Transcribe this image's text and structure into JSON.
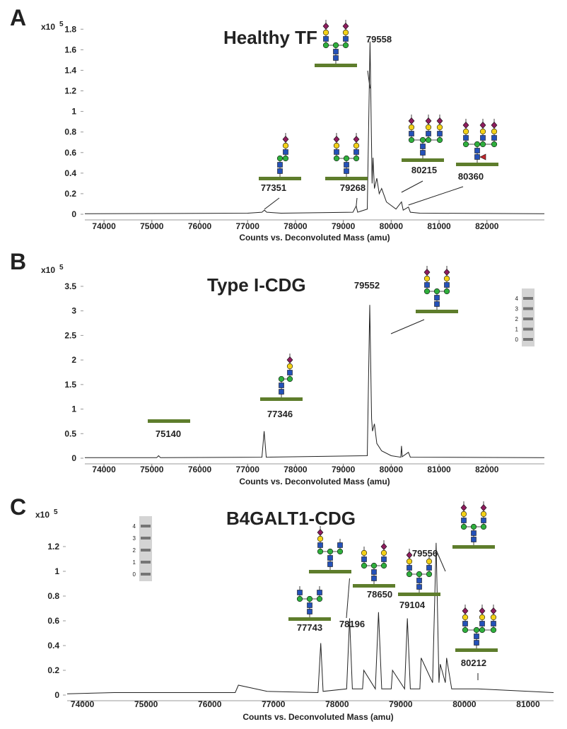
{
  "chart_data": [
    {
      "type": "line",
      "panel": "A",
      "title": "Healthy TF",
      "y_unit": "x10",
      "y_unit_exponent": "5",
      "xlabel": "Counts vs. Deconvoluted Mass (amu)",
      "color": "#222222",
      "x": [
        73600,
        77000,
        77300,
        77351,
        77400,
        77700,
        79200,
        79268,
        79300,
        79500,
        79558,
        79600,
        79620,
        79650,
        79700,
        79750,
        79800,
        79900,
        80100,
        80215,
        80250,
        80360,
        80400,
        80600,
        83200
      ],
      "values": [
        0.005,
        0.01,
        0.02,
        0.04,
        0.02,
        0.01,
        0.02,
        0.08,
        0.02,
        0.05,
        1.68,
        0.3,
        0.55,
        0.25,
        0.35,
        0.2,
        0.25,
        0.12,
        0.05,
        0.12,
        0.04,
        0.07,
        0.02,
        0.01,
        0.005
      ],
      "xlim": [
        73600,
        83200
      ],
      "ylim": [
        0,
        1.85
      ],
      "xticks": [
        74000,
        75000,
        76000,
        77000,
        78000,
        79000,
        80000,
        81000,
        82000
      ],
      "yticks": [
        0,
        0.2,
        0.4,
        0.6,
        0.8,
        1,
        1.2,
        1.4,
        1.6,
        1.8
      ],
      "peak_labels": [
        77351,
        79268,
        79558,
        80215,
        80360
      ]
    },
    {
      "type": "line",
      "panel": "B",
      "title": "Type I-CDG",
      "y_unit": "x10",
      "y_unit_exponent": "5",
      "xlabel": "Counts vs. Deconvoluted Mass (amu)",
      "color": "#222222",
      "x": [
        73600,
        75100,
        75140,
        75180,
        77300,
        77346,
        77390,
        79500,
        79552,
        79590,
        79610,
        79650,
        79700,
        79800,
        80000,
        80200,
        80215,
        80230,
        80360,
        80400,
        83200
      ],
      "values": [
        0.01,
        0.01,
        0.05,
        0.01,
        0.02,
        0.55,
        0.02,
        0.05,
        3.12,
        0.8,
        0.55,
        0.7,
        0.3,
        0.15,
        0.05,
        0.02,
        0.25,
        0.03,
        0.12,
        0.02,
        0.01
      ],
      "xlim": [
        73600,
        83200
      ],
      "ylim": [
        0,
        3.6
      ],
      "xticks": [
        74000,
        75000,
        76000,
        77000,
        78000,
        79000,
        80000,
        81000,
        82000
      ],
      "yticks": [
        0,
        0.5,
        1,
        1.5,
        2,
        2.5,
        3,
        3.5
      ],
      "peak_labels": [
        75140,
        77346,
        79552
      ],
      "gel_labels": [
        4,
        3,
        2,
        1,
        0
      ]
    },
    {
      "type": "line",
      "panel": "C",
      "title": "B4GALT1-CDG",
      "y_unit": "x10",
      "y_unit_exponent": "5",
      "xlabel": "Counts vs. Deconvoluted Mass (amu)",
      "color": "#222222",
      "x": [
        73760,
        74500,
        75500,
        76400,
        76450,
        76900,
        77700,
        77743,
        77780,
        78150,
        78196,
        78240,
        78400,
        78420,
        78600,
        78650,
        78700,
        78850,
        78870,
        79060,
        79104,
        79150,
        79300,
        79320,
        79500,
        79556,
        79600,
        79620,
        79700,
        79720,
        79800,
        80212,
        81400
      ],
      "values": [
        0.01,
        0.02,
        0.02,
        0.02,
        0.08,
        0.03,
        0.02,
        0.42,
        0.03,
        0.05,
        0.62,
        0.05,
        0.05,
        0.2,
        0.05,
        0.67,
        0.05,
        0.05,
        0.2,
        0.05,
        0.62,
        0.05,
        0.05,
        0.3,
        0.1,
        1.23,
        0.1,
        0.25,
        0.1,
        0.3,
        0.05,
        0.05,
        0.02
      ],
      "xlim": [
        73760,
        81400
      ],
      "ylim": [
        0,
        1.4
      ],
      "xticks": [
        74000,
        75000,
        76000,
        77000,
        78000,
        79000,
        80000,
        81000
      ],
      "yticks": [
        0,
        0.2,
        0.4,
        0.6,
        0.8,
        1,
        1.2
      ],
      "peak_labels": [
        77743,
        78196,
        78650,
        79104,
        79556,
        80212
      ],
      "gel_labels": [
        4,
        3,
        2,
        1,
        0
      ]
    }
  ]
}
